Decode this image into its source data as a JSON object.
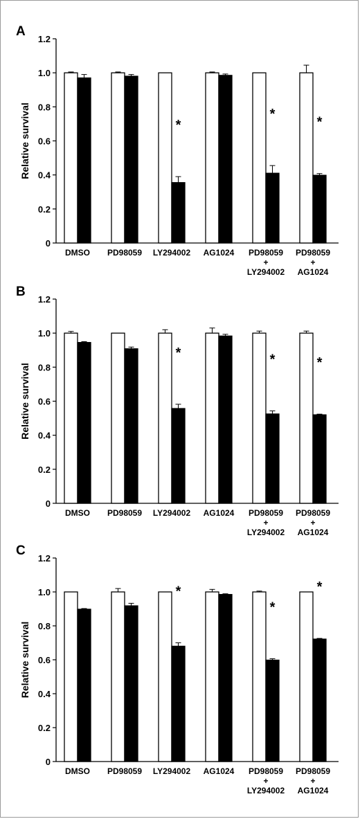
{
  "chart_data": [
    {
      "type": "bar",
      "panel": "A",
      "ylabel": "Relative survival",
      "ylim": [
        0,
        1.2
      ],
      "yticks": [
        "0",
        "0.2",
        "0.4",
        "0.6",
        "0.8",
        "1.0",
        "1.2"
      ],
      "categories": [
        [
          "DMSO"
        ],
        [
          "PD98059"
        ],
        [
          "LY294002"
        ],
        [
          "AG1024"
        ],
        [
          "PD98059",
          "+",
          "LY294002"
        ],
        [
          "PD98059",
          "+",
          "AG1024"
        ]
      ],
      "series": [
        {
          "fill": "#ffffff",
          "values": [
            1.0,
            1.0,
            1.0,
            1.0,
            1.0,
            1.0
          ],
          "errors": [
            0.005,
            0.005,
            0,
            0.005,
            0,
            0.045
          ]
        },
        {
          "fill": "#000000",
          "values": [
            0.97,
            0.98,
            0.355,
            0.985,
            0.41,
            0.398
          ],
          "errors": [
            0.02,
            0.01,
            0.035,
            0.008,
            0.045,
            0.01
          ]
        }
      ],
      "significance": [
        "",
        "",
        "*",
        "",
        "*",
        "*"
      ]
    },
    {
      "type": "bar",
      "panel": "B",
      "ylabel": "Relative survival",
      "ylim": [
        0,
        1.2
      ],
      "yticks": [
        "0",
        "0.2",
        "0.4",
        "0.6",
        "0.8",
        "1.0",
        "1.2"
      ],
      "categories": [
        [
          "DMSO"
        ],
        [
          "PD98059"
        ],
        [
          "LY294002"
        ],
        [
          "AG1024"
        ],
        [
          "PD98059",
          "+",
          "LY294002"
        ],
        [
          "PD98059",
          "+",
          "AG1024"
        ]
      ],
      "series": [
        {
          "fill": "#ffffff",
          "values": [
            1.0,
            1.0,
            1.0,
            1.0,
            1.0,
            1.0
          ],
          "errors": [
            0.01,
            0,
            0.02,
            0.03,
            0.012,
            0.012
          ]
        },
        {
          "fill": "#000000",
          "values": [
            0.945,
            0.908,
            0.557,
            0.983,
            0.525,
            0.52
          ],
          "errors": [
            0.005,
            0.01,
            0.025,
            0.01,
            0.018,
            0.004
          ]
        }
      ],
      "significance": [
        "",
        "",
        "*",
        "",
        "*",
        "*"
      ]
    },
    {
      "type": "bar",
      "panel": "C",
      "ylabel": "Relative survival",
      "ylim": [
        0,
        1.2
      ],
      "yticks": [
        "0",
        "0.2",
        "0.4",
        "0.6",
        "0.8",
        "1.0",
        "1.2"
      ],
      "categories": [
        [
          "DMSO"
        ],
        [
          "PD98059"
        ],
        [
          "LY294002"
        ],
        [
          "AG1024"
        ],
        [
          "PD98059",
          "+",
          "LY294002"
        ],
        [
          "PD98059",
          "+",
          "AG1024"
        ]
      ],
      "series": [
        {
          "fill": "#ffffff",
          "values": [
            1.0,
            1.0,
            1.0,
            1.0,
            1.0,
            1.0
          ],
          "errors": [
            0,
            0.02,
            0,
            0.015,
            0.005,
            0
          ]
        },
        {
          "fill": "#000000",
          "values": [
            0.898,
            0.918,
            0.68,
            0.985,
            0.598,
            0.722
          ],
          "errors": [
            0.004,
            0.015,
            0.02,
            0.004,
            0.008,
            0.004
          ]
        }
      ],
      "significance": [
        "",
        "",
        "*",
        "",
        "*",
        "*"
      ]
    }
  ]
}
